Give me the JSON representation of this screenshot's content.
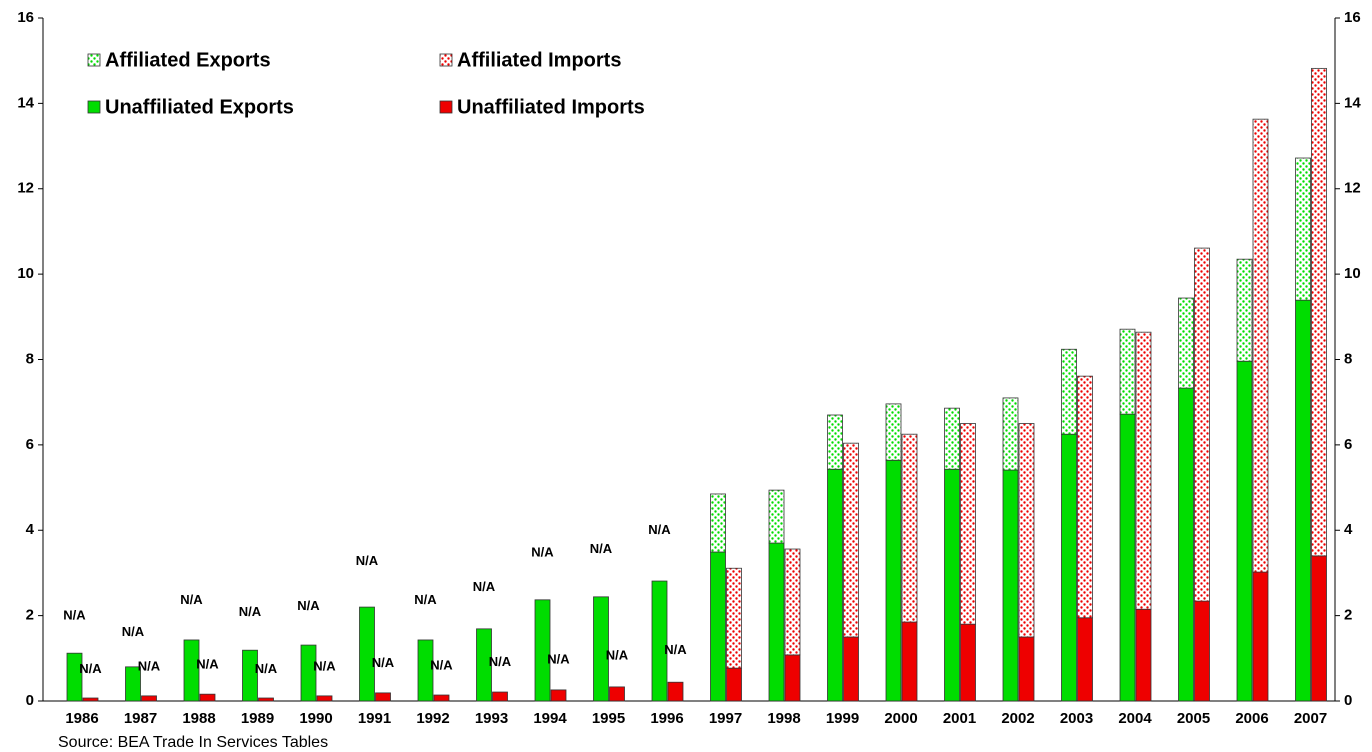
{
  "chart_data": {
    "type": "stacked-grouped-bar",
    "source": "Source: BEA Trade In Services Tables",
    "categories": [
      "1986",
      "1987",
      "1988",
      "1989",
      "1990",
      "1991",
      "1992",
      "1993",
      "1994",
      "1995",
      "1996",
      "1997",
      "1998",
      "1999",
      "2000",
      "2001",
      "2002",
      "2003",
      "2004",
      "2005",
      "2006",
      "2007"
    ],
    "series": [
      {
        "name": "Affiliated Exports",
        "color": "#00dd00",
        "pattern": "dots",
        "stack": "exports",
        "values": [
          null,
          null,
          null,
          null,
          null,
          null,
          null,
          null,
          null,
          null,
          null,
          1.36,
          1.24,
          1.27,
          1.32,
          1.43,
          1.69,
          1.99,
          1.99,
          2.11,
          2.39,
          3.33
        ],
        "value_labels": [
          "N/A",
          "N/A",
          "N/A",
          "N/A",
          "N/A",
          "N/A",
          "N/A",
          "N/A",
          "N/A",
          "N/A",
          "N/A",
          null,
          null,
          null,
          null,
          null,
          null,
          null,
          null,
          null,
          null,
          null
        ]
      },
      {
        "name": "Affiliated Imports",
        "color": "#ee0000",
        "pattern": "dots",
        "stack": "imports",
        "values": [
          null,
          null,
          null,
          null,
          null,
          null,
          null,
          null,
          null,
          null,
          null,
          2.34,
          2.48,
          4.54,
          4.4,
          4.7,
          5.0,
          5.66,
          6.49,
          8.27,
          10.61,
          11.42
        ],
        "value_labels": [
          "N/A",
          "N/A",
          "N/A",
          "N/A",
          "N/A",
          "N/A",
          "N/A",
          "N/A",
          "N/A",
          "N/A",
          "N/A",
          null,
          null,
          null,
          null,
          null,
          null,
          null,
          null,
          null,
          null,
          null
        ]
      },
      {
        "name": "Unaffiliated Exports",
        "color": "#00dd00",
        "pattern": "solid",
        "stack": "exports",
        "values": [
          1.12,
          0.8,
          1.43,
          1.19,
          1.31,
          2.2,
          1.43,
          1.69,
          2.37,
          2.44,
          2.81,
          3.49,
          3.7,
          5.43,
          5.64,
          5.43,
          5.41,
          6.25,
          6.72,
          7.33,
          7.96,
          9.39
        ]
      },
      {
        "name": "Unaffiliated Imports",
        "color": "#ee0000",
        "pattern": "solid",
        "stack": "imports",
        "values": [
          0.07,
          0.12,
          0.16,
          0.07,
          0.12,
          0.19,
          0.14,
          0.21,
          0.26,
          0.33,
          0.44,
          0.77,
          1.08,
          1.5,
          1.85,
          1.8,
          1.5,
          1.95,
          2.15,
          2.34,
          3.02,
          3.4
        ]
      }
    ],
    "ylim": [
      0,
      16
    ],
    "yticks": [
      0,
      2,
      4,
      6,
      8,
      10,
      12,
      14,
      16
    ],
    "y2lim": [
      0,
      16
    ],
    "y2ticks": [
      0,
      2,
      4,
      6,
      8,
      10,
      12,
      14,
      16
    ]
  }
}
